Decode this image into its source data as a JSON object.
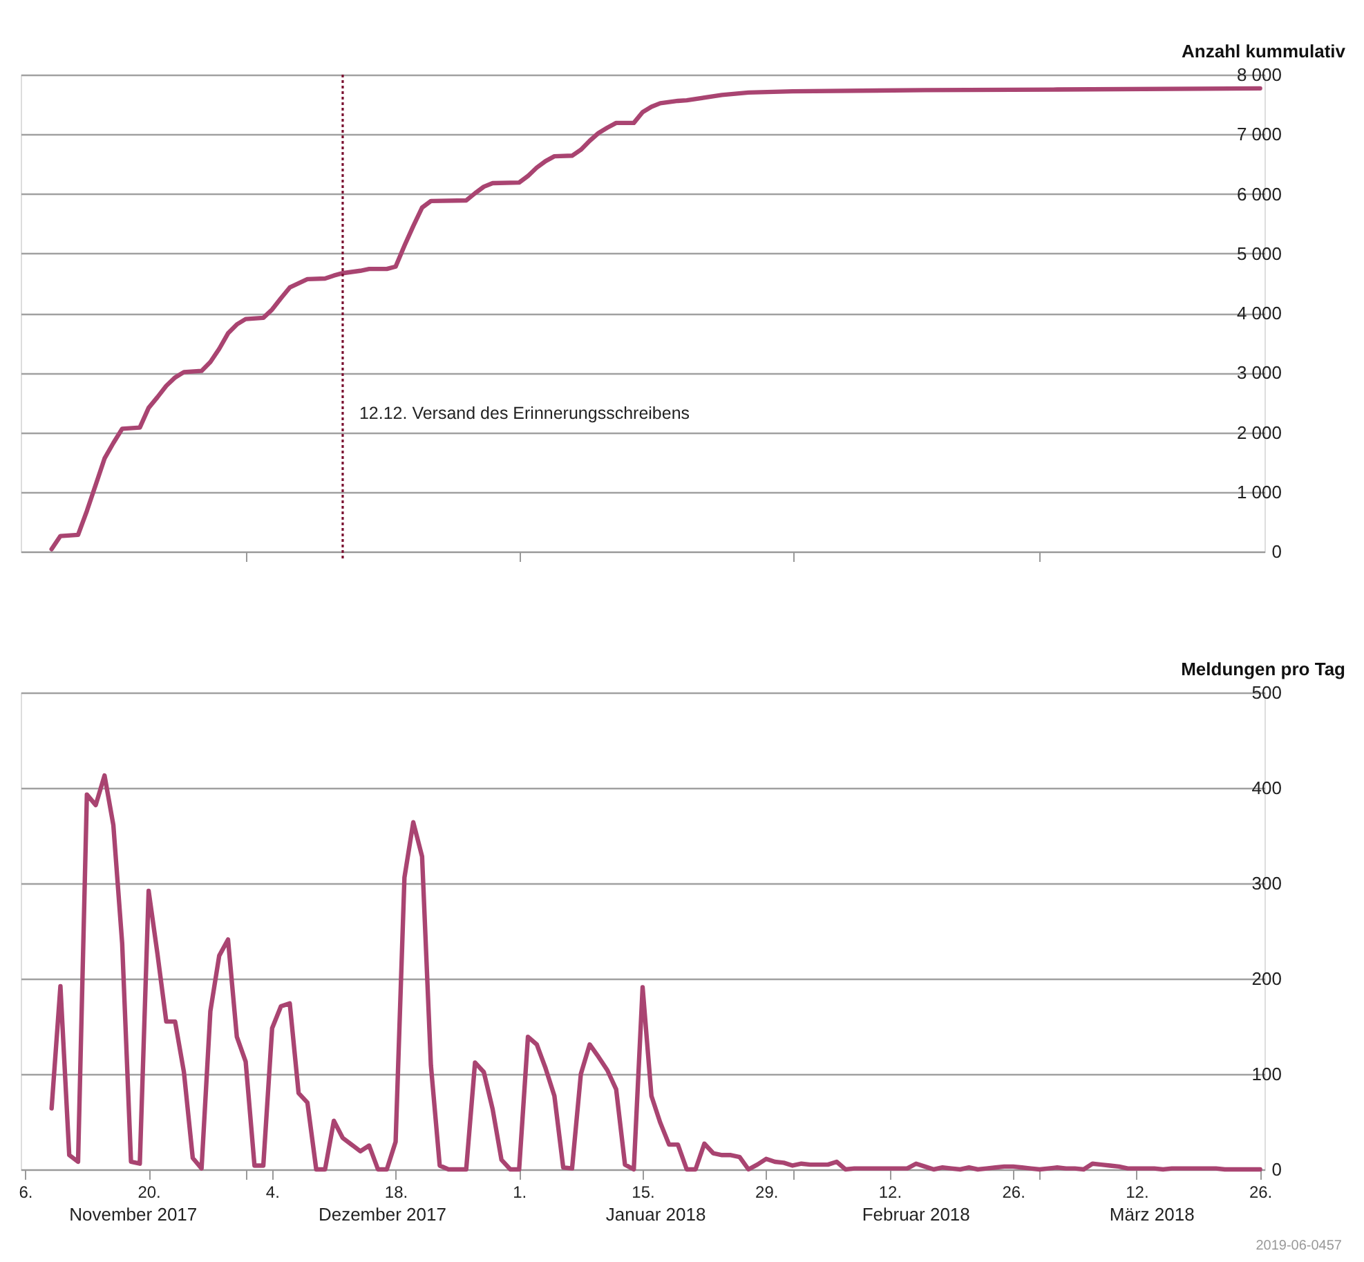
{
  "chart_data": [
    {
      "type": "line",
      "ylabel": "Anzahl kummulativ",
      "xlim": [
        "2017-11-05T12:00",
        "2018-03-26T12:00"
      ],
      "ylim": [
        0,
        8000
      ],
      "yticks": [
        0,
        {
          "value": 1000,
          "label": "1 000"
        },
        {
          "value": 2000,
          "label": "2 000"
        },
        {
          "value": 3000,
          "label": "3 000"
        },
        {
          "value": 4000,
          "label": "4 000"
        },
        {
          "value": 5000,
          "label": "5 000"
        },
        {
          "value": 6000,
          "label": "6 000"
        },
        {
          "value": 7000,
          "label": "7 000"
        },
        {
          "value": 8000,
          "label": "8 000"
        }
      ],
      "xticks": [
        {
          "value": "2017-12-01",
          "label": null
        },
        {
          "value": "2018-01-01",
          "label": null
        },
        {
          "value": "2018-02-01",
          "label": null
        },
        {
          "value": "2018-03-01",
          "label": null
        }
      ],
      "tick_labels": "y",
      "grid": "y",
      "ref_lines": [
        {
          "axis": "x",
          "value": "2017-12-12",
          "label": "12.12. Versand des Erinnerungsschreibens",
          "color": "#7a1030",
          "line_style": "dotted"
        }
      ],
      "series": [
        {
          "color": "#a94471",
          "x": [
            "2017-11-09",
            "2017-11-10",
            "2017-11-12",
            "2017-11-13",
            "2017-11-14",
            "2017-11-15",
            "2017-11-16",
            "2017-11-17",
            "2017-11-19",
            "2017-11-20",
            "2017-11-21",
            "2017-11-22",
            "2017-11-23",
            "2017-11-24",
            "2017-11-26",
            "2017-11-27",
            "2017-11-28",
            "2017-11-29",
            "2017-11-30",
            "2017-12-01",
            "2017-12-03",
            "2017-12-04",
            "2017-12-05",
            "2017-12-06",
            "2017-12-07",
            "2017-12-08",
            "2017-12-10",
            "2017-12-11",
            "2017-12-12",
            "2017-12-13",
            "2017-12-14",
            "2017-12-15",
            "2017-12-17",
            "2017-12-18",
            "2017-12-19",
            "2017-12-20",
            "2017-12-21",
            "2017-12-22",
            "2017-12-26",
            "2017-12-27",
            "2017-12-28",
            "2017-12-29",
            "2018-01-01",
            "2018-01-02",
            "2018-01-03",
            "2018-01-04",
            "2018-01-05",
            "2018-01-07",
            "2018-01-08",
            "2018-01-09",
            "2018-01-10",
            "2018-01-11",
            "2018-01-12",
            "2018-01-14",
            "2018-01-15",
            "2018-01-16",
            "2018-01-17",
            "2018-01-19",
            "2018-01-20",
            "2018-01-24",
            "2018-01-27",
            "2018-02-01",
            "2018-02-16",
            "2018-03-03",
            "2018-03-26"
          ],
          "values": [
            40,
            260,
            280,
            680,
            1120,
            1560,
            1820,
            2060,
            2080,
            2410,
            2590,
            2780,
            2920,
            3010,
            3030,
            3180,
            3400,
            3660,
            3810,
            3900,
            3920,
            4060,
            4250,
            4430,
            4500,
            4570,
            4580,
            4630,
            4670,
            4690,
            4710,
            4740,
            4740,
            4780,
            5130,
            5460,
            5770,
            5880,
            5890,
            6010,
            6120,
            6180,
            6190,
            6300,
            6440,
            6550,
            6630,
            6640,
            6740,
            6890,
            7020,
            7110,
            7190,
            7190,
            7370,
            7460,
            7520,
            7560,
            7570,
            7660,
            7700,
            7720,
            7740,
            7750,
            7770
          ]
        }
      ]
    },
    {
      "type": "line",
      "ylabel": "Meldungen pro Tag",
      "xlim": [
        "2017-11-05T12:00",
        "2018-03-26T12:00"
      ],
      "ylim": [
        0,
        500
      ],
      "yticks": [
        0,
        100,
        200,
        300,
        400,
        500
      ],
      "xticks": [
        {
          "value": "2017-11-06",
          "label": "6."
        },
        {
          "value": "2017-11-20",
          "label": "20."
        },
        {
          "value": "2017-12-01",
          "label": null
        },
        {
          "value": "2017-12-04",
          "label": "4."
        },
        {
          "value": "2017-12-18",
          "label": "18."
        },
        {
          "value": "2018-01-01",
          "label": "1."
        },
        {
          "value": "2018-01-15",
          "label": "15."
        },
        {
          "value": "2018-01-29",
          "label": "29."
        },
        {
          "value": "2018-02-01",
          "label": null
        },
        {
          "value": "2018-02-12",
          "label": "12."
        },
        {
          "value": "2018-02-26",
          "label": "26."
        },
        {
          "value": "2018-03-01",
          "label": null
        },
        {
          "value": "2018-03-12",
          "label": "12."
        },
        {
          "value": "2018-03-26",
          "label": "26."
        }
      ],
      "grid": "y",
      "annotations": [
        "November 2017",
        "Dezember 2017",
        "Januar 2018",
        "Februar 2018",
        "März 2018",
        "2019-06-0457"
      ],
      "x": [
        "2017-11-09",
        "2017-11-10",
        "2017-11-11",
        "2017-11-12",
        "2017-11-13",
        "2017-11-14",
        "2017-11-15",
        "2017-11-16",
        "2017-11-17",
        "2017-11-18",
        "2017-11-19",
        "2017-11-20",
        "2017-11-21",
        "2017-11-22",
        "2017-11-23",
        "2017-11-24",
        "2017-11-25",
        "2017-11-26",
        "2017-11-27",
        "2017-11-28",
        "2017-11-29",
        "2017-11-30",
        "2017-12-01",
        "2017-12-02",
        "2017-12-03",
        "2017-12-04",
        "2017-12-05",
        "2017-12-06",
        "2017-12-07",
        "2017-12-08",
        "2017-12-09",
        "2017-12-10",
        "2017-12-11",
        "2017-12-12",
        "2017-12-13",
        "2017-12-14",
        "2017-12-15",
        "2017-12-16",
        "2017-12-17",
        "2017-12-18",
        "2017-12-19",
        "2017-12-20",
        "2017-12-21",
        "2017-12-22",
        "2017-12-23",
        "2017-12-24",
        "2017-12-25",
        "2017-12-26",
        "2017-12-27",
        "2017-12-28",
        "2017-12-29",
        "2017-12-30",
        "2017-12-31",
        "2018-01-01",
        "2018-01-02",
        "2018-01-03",
        "2018-01-04",
        "2018-01-05",
        "2018-01-06",
        "2018-01-07",
        "2018-01-08",
        "2018-01-09",
        "2018-01-10",
        "2018-01-11",
        "2018-01-12",
        "2018-01-13",
        "2018-01-14",
        "2018-01-15",
        "2018-01-16",
        "2018-01-17",
        "2018-01-18",
        "2018-01-19",
        "2018-01-20",
        "2018-01-21",
        "2018-01-22",
        "2018-01-23",
        "2018-01-24",
        "2018-01-25",
        "2018-01-26",
        "2018-01-27",
        "2018-01-28",
        "2018-01-29",
        "2018-01-30",
        "2018-01-31",
        "2018-02-01",
        "2018-02-02",
        "2018-02-03",
        "2018-02-04",
        "2018-02-05",
        "2018-02-06",
        "2018-02-07",
        "2018-02-08",
        "2018-02-09",
        "2018-02-10",
        "2018-02-11",
        "2018-02-12",
        "2018-02-13",
        "2018-02-14",
        "2018-02-15",
        "2018-02-16",
        "2018-02-17",
        "2018-02-18",
        "2018-02-19",
        "2018-02-20",
        "2018-02-21",
        "2018-02-22",
        "2018-02-23",
        "2018-02-24",
        "2018-02-25",
        "2018-02-26",
        "2018-02-27",
        "2018-02-28",
        "2018-03-01",
        "2018-03-02",
        "2018-03-03",
        "2018-03-04",
        "2018-03-05",
        "2018-03-06",
        "2018-03-07",
        "2018-03-08",
        "2018-03-09",
        "2018-03-10",
        "2018-03-11",
        "2018-03-12",
        "2018-03-13",
        "2018-03-14",
        "2018-03-15",
        "2018-03-16",
        "2018-03-17",
        "2018-03-18",
        "2018-03-19",
        "2018-03-20",
        "2018-03-21",
        "2018-03-22",
        "2018-03-23",
        "2018-03-24",
        "2018-03-25",
        "2018-03-26"
      ],
      "series": [
        {
          "color": "#a94471",
          "values": [
            64,
            192,
            15,
            8,
            393,
            382,
            413,
            361,
            237,
            8,
            6,
            292,
            226,
            155,
            155,
            102,
            12,
            1,
            166,
            224,
            241,
            139,
            113,
            4,
            4,
            148,
            171,
            174,
            80,
            70,
            0,
            0,
            51,
            33,
            26,
            19,
            25,
            0,
            0,
            29,
            306,
            364,
            328,
            109,
            4,
            0,
            0,
            0,
            112,
            102,
            63,
            10,
            0,
            0,
            139,
            131,
            106,
            77,
            2,
            1,
            100,
            131,
            118,
            104,
            84,
            5,
            0,
            191,
            77,
            49,
            26,
            26,
            0,
            0,
            27,
            17,
            15,
            15,
            13,
            0,
            5,
            11,
            8,
            7,
            4,
            6,
            5,
            5,
            5,
            8,
            0,
            1,
            1,
            1,
            1,
            1,
            1,
            1,
            6,
            3,
            0,
            2,
            1,
            0,
            2,
            0,
            1,
            2,
            3,
            3,
            2,
            1,
            0,
            1,
            2,
            1,
            1,
            0,
            6,
            5,
            4,
            3,
            1,
            1,
            1,
            1,
            0,
            1,
            1,
            1,
            1,
            1,
            1,
            0,
            0,
            0,
            0,
            0
          ]
        }
      ]
    }
  ]
}
